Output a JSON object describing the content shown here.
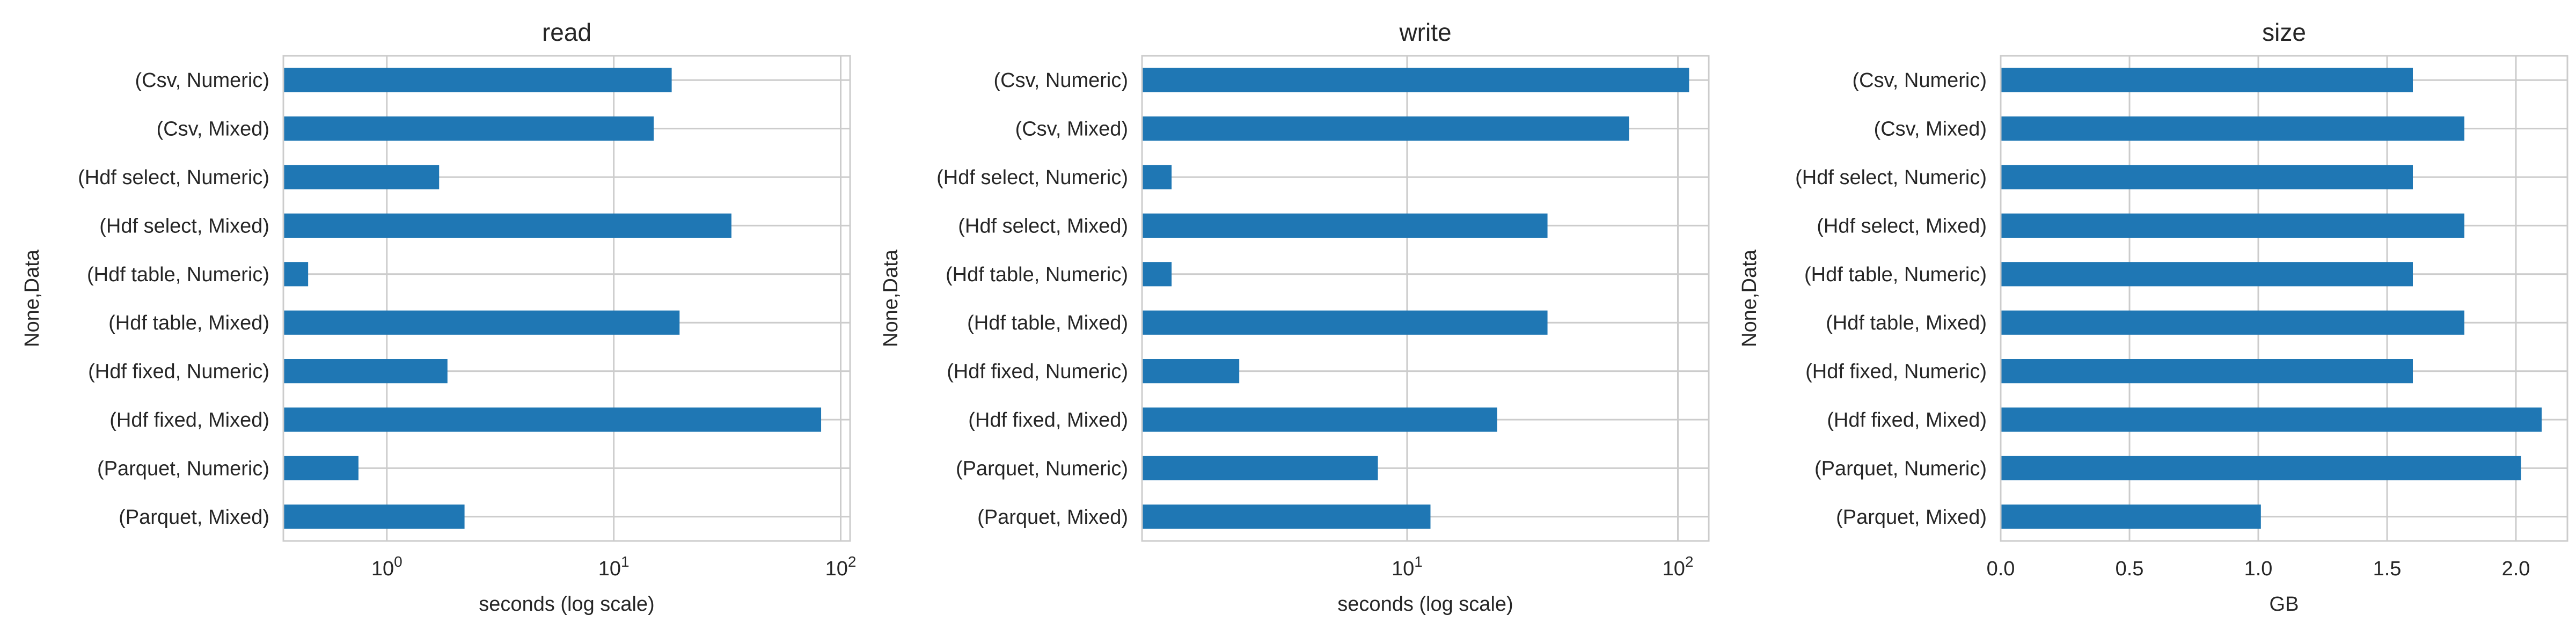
{
  "chart_data": [
    {
      "type": "bar",
      "orientation": "horizontal",
      "title": "read",
      "xlabel": "seconds (log scale)",
      "ylabel": "None,Data",
      "xscale": "log",
      "xlim": [
        0.35,
        110
      ],
      "xticks": [
        1,
        10,
        100
      ],
      "xtick_labels": [
        {
          "base": "10",
          "exp": "0"
        },
        {
          "base": "10",
          "exp": "1"
        },
        {
          "base": "10",
          "exp": "2"
        }
      ],
      "grid": true,
      "categories": [
        "(Csv, Numeric)",
        "(Csv, Mixed)",
        "(Hdf select, Numeric)",
        "(Hdf select, Mixed)",
        "(Hdf table, Numeric)",
        "(Hdf table, Mixed)",
        "(Hdf fixed, Numeric)",
        "(Hdf fixed, Mixed)",
        "(Parquet, Numeric)",
        "(Parquet, Mixed)"
      ],
      "values": [
        18,
        15,
        1.7,
        33,
        0.45,
        19.5,
        1.85,
        82,
        0.75,
        2.2
      ],
      "color": "#1f77b4"
    },
    {
      "type": "bar",
      "orientation": "horizontal",
      "title": "write",
      "xlabel": "seconds (log scale)",
      "ylabel": "None,Data",
      "xscale": "log",
      "xlim": [
        1.05,
        130
      ],
      "xticks": [
        10,
        100
      ],
      "xtick_labels": [
        {
          "base": "10",
          "exp": "1"
        },
        {
          "base": "10",
          "exp": "2"
        }
      ],
      "grid": true,
      "categories": [
        "(Csv, Numeric)",
        "(Csv, Mixed)",
        "(Hdf select, Numeric)",
        "(Hdf select, Mixed)",
        "(Hdf table, Numeric)",
        "(Hdf table, Mixed)",
        "(Hdf fixed, Numeric)",
        "(Hdf fixed, Mixed)",
        "(Parquet, Numeric)",
        "(Parquet, Mixed)"
      ],
      "values": [
        110,
        66,
        1.35,
        33,
        1.35,
        33,
        2.4,
        21.5,
        7.8,
        12.2
      ],
      "color": "#1f77b4"
    },
    {
      "type": "bar",
      "orientation": "horizontal",
      "title": "size",
      "xlabel": "GB",
      "ylabel": "None,Data",
      "xscale": "linear",
      "xlim": [
        0,
        2.2
      ],
      "xticks": [
        0,
        0.5,
        1.0,
        1.5,
        2.0
      ],
      "xtick_labels": [
        "0.0",
        "0.5",
        "1.0",
        "1.5",
        "2.0"
      ],
      "grid": true,
      "categories": [
        "(Csv, Numeric)",
        "(Csv, Mixed)",
        "(Hdf select, Numeric)",
        "(Hdf select, Mixed)",
        "(Hdf table, Numeric)",
        "(Hdf table, Mixed)",
        "(Hdf fixed, Numeric)",
        "(Hdf fixed, Mixed)",
        "(Parquet, Numeric)",
        "(Parquet, Mixed)"
      ],
      "values": [
        1.6,
        1.8,
        1.6,
        1.8,
        1.6,
        1.8,
        1.6,
        2.1,
        2.02,
        1.01
      ],
      "color": "#1f77b4"
    }
  ]
}
